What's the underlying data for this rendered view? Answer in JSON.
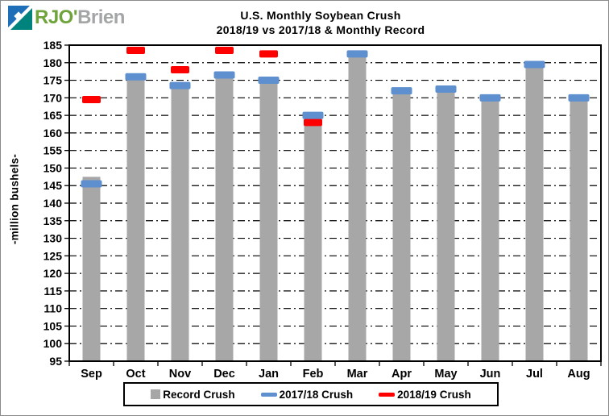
{
  "logo": {
    "primary": "RJO'",
    "secondary": "Brien",
    "primary_color": "#6FA33C",
    "secondary_color": "#A3A5A7",
    "icon_blue": "#1E6FB8",
    "icon_teal": "#00837C"
  },
  "chart_data": {
    "type": "bar",
    "title": "U.S. Monthly Soybean Crush",
    "subtitle": "2018/19 vs 2017/18 & Monthly Record",
    "ylabel": "-million bushels-",
    "ylim": [
      95,
      185
    ],
    "ytick_step": 5,
    "yticks": [
      95,
      100,
      105,
      110,
      115,
      120,
      125,
      130,
      135,
      140,
      145,
      150,
      155,
      160,
      165,
      170,
      175,
      180,
      185
    ],
    "grid": "horizontal dash-dot",
    "legend_position": "bottom",
    "categories": [
      "Sep",
      "Oct",
      "Nov",
      "Dec",
      "Jan",
      "Feb",
      "Mar",
      "Apr",
      "May",
      "Jun",
      "Jul",
      "Aug"
    ],
    "series": [
      {
        "name": "Record Crush",
        "type": "bar",
        "color": "#A7A7A7",
        "values": [
          147.5,
          176,
          173.5,
          176.5,
          175,
          165,
          182.5,
          172,
          172.5,
          170,
          179.5,
          170
        ]
      },
      {
        "name": "2017/18 Crush",
        "type": "dash",
        "color": "#5E8FCE",
        "values": [
          145.5,
          176,
          173.5,
          176.5,
          175,
          165,
          182.5,
          172,
          172.5,
          170,
          179.5,
          170
        ]
      },
      {
        "name": "2018/19 Crush",
        "type": "dash",
        "color": "#FF0000",
        "values": [
          169.5,
          183.5,
          178,
          183.5,
          182.5,
          163,
          null,
          null,
          null,
          null,
          null,
          null
        ]
      }
    ]
  }
}
